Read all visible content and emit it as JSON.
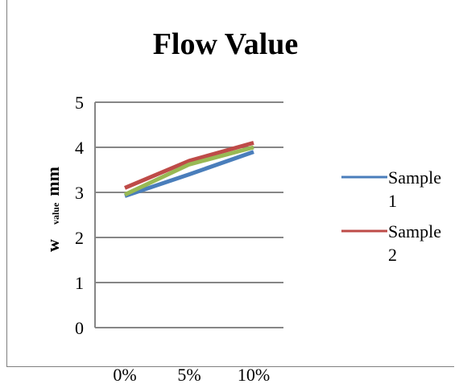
{
  "chart_data": {
    "type": "line",
    "title": "Flow Value",
    "ylabel": {
      "main": "w",
      "subscript": "value",
      "unit": "mm"
    },
    "categories": [
      "0%",
      "5%",
      "10%"
    ],
    "ylim": [
      0,
      5
    ],
    "yticks": [
      0,
      1,
      2,
      3,
      4,
      5
    ],
    "grid": true,
    "legend_position": "right",
    "series": [
      {
        "name": "Sample 1",
        "legend_lines": [
          "Sample",
          "1"
        ],
        "color": "#4a7ebb",
        "values": [
          2.92,
          3.4,
          3.9
        ]
      },
      {
        "name": "Sample 2",
        "legend_lines": [
          "Sample",
          "2"
        ],
        "color": "#be4b48",
        "values": [
          3.1,
          3.7,
          4.1
        ]
      },
      {
        "name": "",
        "color": "#98b954",
        "values": [
          2.95,
          3.62,
          4.0
        ]
      }
    ]
  }
}
